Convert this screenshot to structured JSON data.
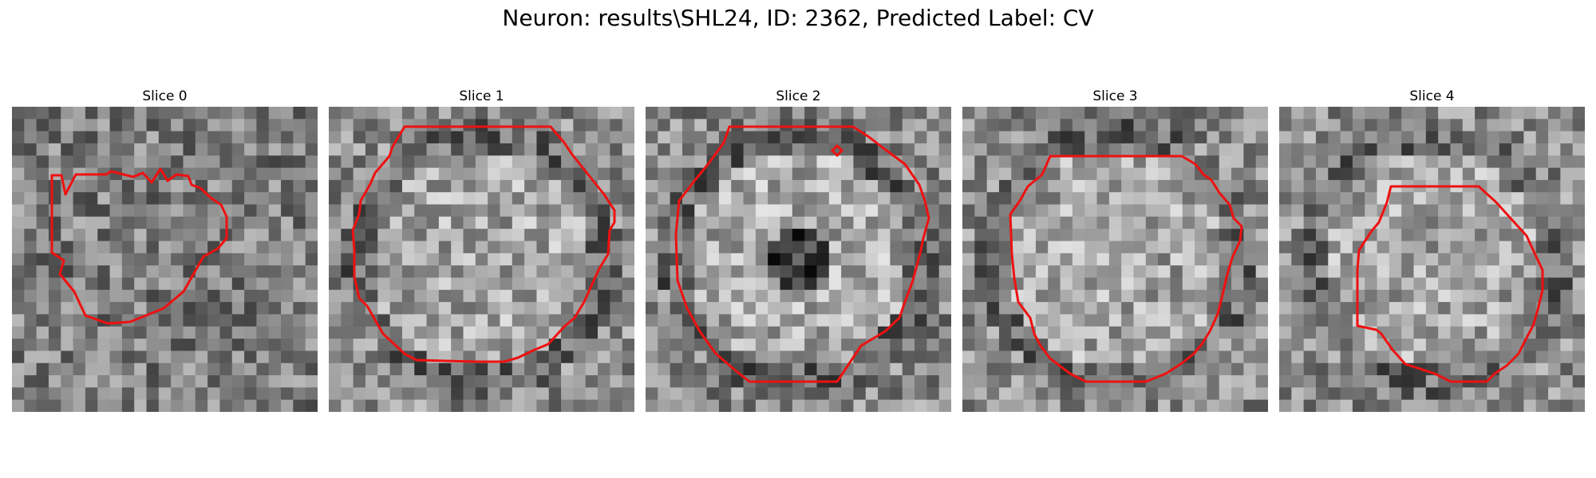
{
  "figure": {
    "title": "Neuron: results\\SHL24, ID: 2362, Predicted Label: CV"
  },
  "slices": [
    {
      "title": "Slice 0",
      "seed": 11,
      "pattern": "noise"
    },
    {
      "title": "Slice 1",
      "seed": 23,
      "pattern": "bright-disk"
    },
    {
      "title": "Slice 2",
      "seed": 37,
      "pattern": "dark-center"
    },
    {
      "title": "Slice 3",
      "seed": 49,
      "pattern": "bright-disk"
    },
    {
      "title": "Slice 4",
      "seed": 61,
      "pattern": "bright-disk"
    }
  ],
  "colors": {
    "contour": "#ee1111",
    "background": "#ffffff"
  }
}
